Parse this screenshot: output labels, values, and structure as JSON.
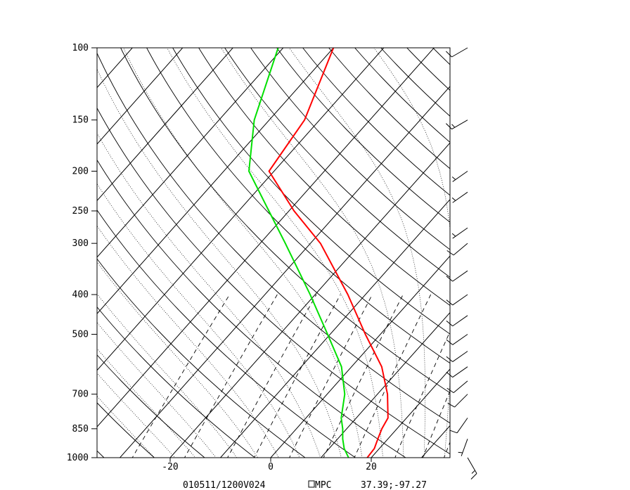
{
  "chart_data": {
    "type": "line",
    "chart_kind": "skew-t log-p sounding",
    "title": "",
    "pressure_scale": "log",
    "pressure_ticks": [
      100,
      150,
      200,
      250,
      300,
      400,
      500,
      700,
      850,
      1000
    ],
    "pressure_tick_labels": [
      "100",
      "150",
      "200",
      "250",
      "300",
      "400",
      "500",
      "700",
      "850",
      "1000"
    ],
    "temperature_ticks": [
      -20,
      0,
      20
    ],
    "temperature_tick_labels": [
      "-20",
      "0",
      "20"
    ],
    "plim": [
      1000,
      100
    ],
    "series": [
      {
        "id": "temperature",
        "color": "#ff0000",
        "points": [
          {
            "p": 1000,
            "t": 19.2
          },
          {
            "p": 950,
            "t": 19.0
          },
          {
            "p": 900,
            "t": 18.0
          },
          {
            "p": 850,
            "t": 17.0
          },
          {
            "p": 800,
            "t": 16.3
          },
          {
            "p": 700,
            "t": 12.0
          },
          {
            "p": 600,
            "t": 6.0
          },
          {
            "p": 500,
            "t": -3.0
          },
          {
            "p": 400,
            "t": -13.5
          },
          {
            "p": 300,
            "t": -28.0
          },
          {
            "p": 250,
            "t": -39.0
          },
          {
            "p": 200,
            "t": -51.0
          },
          {
            "p": 150,
            "t": -53.0
          },
          {
            "p": 100,
            "t": -60.0
          }
        ]
      },
      {
        "id": "dewpoint",
        "color": "#00e000",
        "points": [
          {
            "p": 1000,
            "t": 15.5
          },
          {
            "p": 950,
            "t": 13.0
          },
          {
            "p": 900,
            "t": 11.0
          },
          {
            "p": 850,
            "t": 9.2
          },
          {
            "p": 800,
            "t": 7.0
          },
          {
            "p": 700,
            "t": 3.5
          },
          {
            "p": 600,
            "t": -2.0
          },
          {
            "p": 500,
            "t": -10.5
          },
          {
            "p": 400,
            "t": -21.0
          },
          {
            "p": 300,
            "t": -35.0
          },
          {
            "p": 250,
            "t": -44.0
          },
          {
            "p": 200,
            "t": -55.0
          },
          {
            "p": 150,
            "t": -63.0
          },
          {
            "p": 100,
            "t": -71.0
          }
        ]
      }
    ],
    "wind_barbs": [
      {
        "p": 100,
        "dir": 240,
        "spd": 10
      },
      {
        "p": 150,
        "dir": 240,
        "spd": 15
      },
      {
        "p": 200,
        "dir": 235,
        "spd": 5
      },
      {
        "p": 225,
        "dir": 235,
        "spd": 5
      },
      {
        "p": 275,
        "dir": 235,
        "spd": 5
      },
      {
        "p": 300,
        "dir": 230,
        "spd": 10
      },
      {
        "p": 350,
        "dir": 235,
        "spd": 10
      },
      {
        "p": 400,
        "dir": 235,
        "spd": 10
      },
      {
        "p": 450,
        "dir": 235,
        "spd": 10
      },
      {
        "p": 500,
        "dir": 235,
        "spd": 10
      },
      {
        "p": 550,
        "dir": 235,
        "spd": 10
      },
      {
        "p": 600,
        "dir": 235,
        "spd": 10
      },
      {
        "p": 650,
        "dir": 230,
        "spd": 10
      },
      {
        "p": 700,
        "dir": 225,
        "spd": 10
      },
      {
        "p": 800,
        "dir": 215,
        "spd": 10
      },
      {
        "p": 900,
        "dir": 200,
        "spd": 5
      },
      {
        "p": 1000,
        "dir": 150,
        "spd": 15
      }
    ],
    "grid": true
  },
  "footer": {
    "time_label": "010511/1200V024",
    "source_label": "MPC",
    "location_label": "37.39;-97.27"
  },
  "colors": {
    "temperature": "#ff0000",
    "dewpoint": "#00e000",
    "grid": "#000000"
  }
}
